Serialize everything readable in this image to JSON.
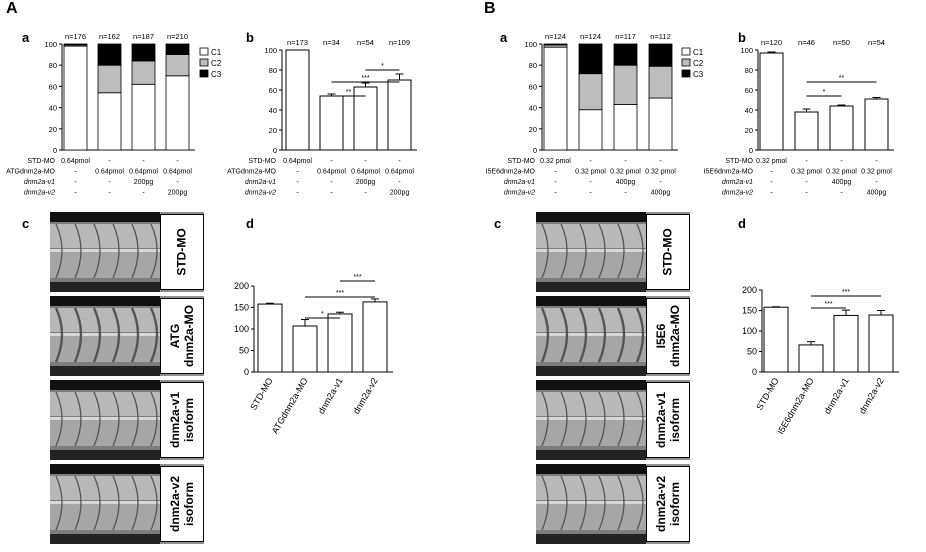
{
  "panel_labels": {
    "A": "A",
    "B": "B"
  },
  "sub_labels": {
    "a": "a",
    "b": "b",
    "c": "c",
    "d": "d"
  },
  "colors": {
    "c1": "#ffffff",
    "c2": "#bdbdbd",
    "c3": "#000000",
    "bar": "#ffffff",
    "stroke": "#000000"
  },
  "image_labels": {
    "A": [
      "STD-MO",
      "ATG\ndnm2a-MO",
      "dnm2a-v1\nisoform",
      "dnm2a-v2\nisoform"
    ],
    "B": [
      "STD-MO",
      "I5E6\ndnm2a-MO",
      "dnm2a-v1\nisoform",
      "dnm2a-v2\nisoform"
    ]
  },
  "chart_data": [
    {
      "id": "Aa",
      "type": "bar",
      "stacked": true,
      "n_labels": [
        "n=176",
        "n=162",
        "n=187",
        "n=210"
      ],
      "series": [
        {
          "name": "C1",
          "values": [
            98,
            54,
            62,
            70
          ]
        },
        {
          "name": "C2",
          "values": [
            1,
            26,
            22,
            20
          ]
        },
        {
          "name": "C3",
          "values": [
            1,
            20,
            16,
            10
          ]
        }
      ],
      "ylim": [
        0,
        100
      ],
      "yticks": [
        "0",
        "20",
        "40",
        "60",
        "80",
        "100"
      ],
      "legend": "right",
      "conditions": [
        {
          "label": "STD-MO",
          "values": [
            "0.64pmol",
            "-",
            "-",
            "-"
          ]
        },
        {
          "label": "ATGdnm2a-MO",
          "values": [
            "-",
            "0.64pmol",
            "0.64pmol",
            "0.64pmol"
          ]
        },
        {
          "label": "dnm2a-v1",
          "values": [
            "-",
            "-",
            "200pg",
            "-"
          ]
        },
        {
          "label": "dnm2a-v2",
          "values": [
            "-",
            "-",
            "-",
            "200pg"
          ]
        }
      ]
    },
    {
      "id": "Ab",
      "type": "bar",
      "n_labels": [
        "n=173",
        "n=34",
        "n=54",
        "n=109"
      ],
      "values": [
        100,
        54,
        63,
        70
      ],
      "errors": [
        0,
        2,
        4,
        6
      ],
      "ylim": [
        0,
        100
      ],
      "yticks": [
        "0",
        "20",
        "40",
        "60",
        "80",
        "100"
      ],
      "significance": [
        {
          "from": 1,
          "to": 2,
          "label": "**"
        },
        {
          "from": 1,
          "to": 3,
          "label": "***"
        },
        {
          "from": 2,
          "to": 3,
          "label": "*"
        }
      ],
      "conditions": [
        {
          "label": "STD-MO",
          "values": [
            "0.64pmol",
            "-",
            "-",
            "-"
          ]
        },
        {
          "label": "ATGdnm2a-MO",
          "values": [
            "-",
            "0.64pmol",
            "0.64pmol",
            "0.64pmol"
          ]
        },
        {
          "label": "dnm2a-v1",
          "values": [
            "-",
            "-",
            "200pg",
            "-"
          ]
        },
        {
          "label": "dnm2a-v2",
          "values": [
            "-",
            "-",
            "-",
            "200pg"
          ]
        }
      ]
    },
    {
      "id": "Ad",
      "type": "bar",
      "categories": [
        "STD-MO",
        "ATGdnm2a-MO",
        "dnm2a-v1",
        "dnm2a-v2"
      ],
      "values": [
        158,
        107,
        135,
        163
      ],
      "errors": [
        2,
        15,
        4,
        7
      ],
      "ylim": [
        0,
        200
      ],
      "yticks": [
        "0",
        "50",
        "100",
        "150",
        "200"
      ],
      "significance": [
        {
          "from": 1,
          "to": 2,
          "label": "*"
        },
        {
          "from": 1,
          "to": 3,
          "label": "***"
        },
        {
          "from": 2,
          "to": 3,
          "label": "***"
        }
      ]
    },
    {
      "id": "Ba",
      "type": "bar",
      "stacked": true,
      "n_labels": [
        "n=124",
        "n=124",
        "n=117",
        "n=112"
      ],
      "series": [
        {
          "name": "C1",
          "values": [
            97,
            38,
            43,
            49
          ]
        },
        {
          "name": "C2",
          "values": [
            2,
            34,
            37,
            30
          ]
        },
        {
          "name": "C3",
          "values": [
            1,
            28,
            20,
            21
          ]
        }
      ],
      "ylim": [
        0,
        100
      ],
      "yticks": [
        "0",
        "20",
        "40",
        "60",
        "80",
        "100"
      ],
      "legend": "right",
      "conditions": [
        {
          "label": "STD-MO",
          "values": [
            "0.32 pmol",
            "-",
            "-",
            "-"
          ]
        },
        {
          "label": "I5E6dnm2a-MO",
          "values": [
            "-",
            "0.32 pmol",
            "0.32 pmol",
            "0.32 pmol"
          ]
        },
        {
          "label": "dnm2a-v1",
          "values": [
            "-",
            "-",
            "400pg",
            "-"
          ]
        },
        {
          "label": "dnm2a-v2",
          "values": [
            "-",
            "-",
            "-",
            "400pg"
          ]
        }
      ]
    },
    {
      "id": "Bb",
      "type": "bar",
      "n_labels": [
        "n=120",
        "n=46",
        "n=50",
        "n=54"
      ],
      "values": [
        97,
        38,
        44,
        51
      ],
      "errors": [
        1,
        3,
        1,
        1.5
      ],
      "ylim": [
        0,
        100
      ],
      "yticks": [
        "0",
        "20",
        "40",
        "60",
        "80",
        "100"
      ],
      "significance": [
        {
          "from": 1,
          "to": 2,
          "label": "*"
        },
        {
          "from": 1,
          "to": 3,
          "label": "**"
        }
      ],
      "conditions": [
        {
          "label": "STD-MO",
          "values": [
            "0.32 pmol",
            "-",
            "-",
            "-"
          ]
        },
        {
          "label": "I5E6dnm2a-MO",
          "values": [
            "-",
            "0.32 pmol",
            "0.32 pmol",
            "0.32 pmol"
          ]
        },
        {
          "label": "dnm2a-v1",
          "values": [
            "-",
            "-",
            "400pg",
            "-"
          ]
        },
        {
          "label": "dnm2a-v2",
          "values": [
            "-",
            "-",
            "-",
            "400pg"
          ]
        }
      ]
    },
    {
      "id": "Bd",
      "type": "bar",
      "categories": [
        "STD-MO",
        "I5E6dnm2a-MO",
        "dnm2a-v1",
        "dnm2a-v2"
      ],
      "values": [
        158,
        66,
        138,
        139
      ],
      "errors": [
        1,
        8,
        13,
        11
      ],
      "ylim": [
        0,
        200
      ],
      "yticks": [
        "0",
        "50",
        "100",
        "150",
        "200"
      ],
      "significance": [
        {
          "from": 1,
          "to": 2,
          "label": "***"
        },
        {
          "from": 1,
          "to": 3,
          "label": "***"
        }
      ]
    }
  ]
}
